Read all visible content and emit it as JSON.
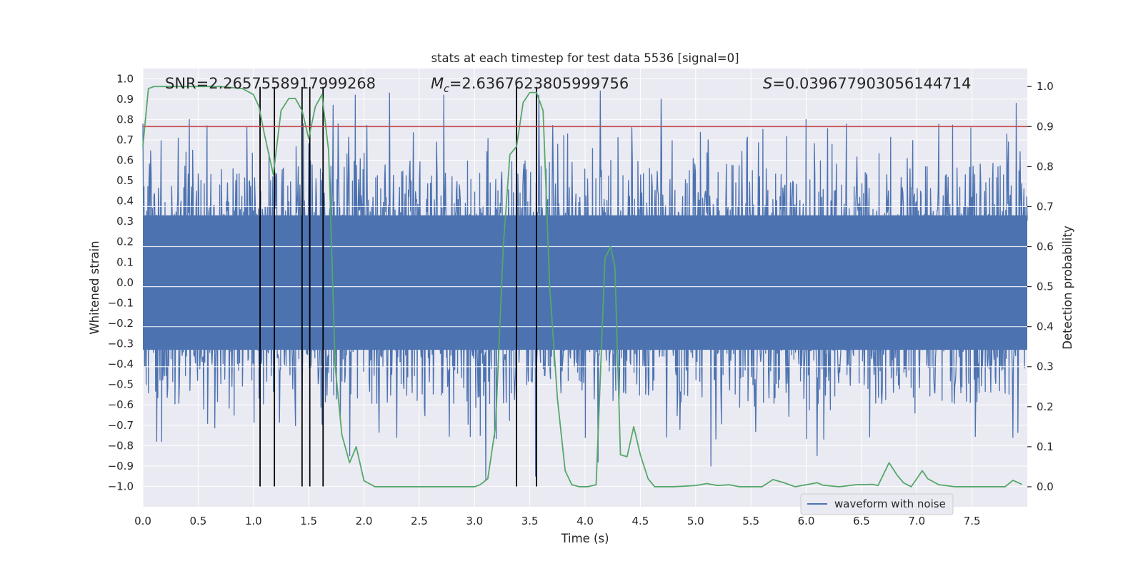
{
  "chart_data": {
    "type": "line",
    "title": "stats at each timestep for test data 5536 [signal=0]",
    "xlabel": "Time (s)",
    "ylabel_left": "Whitened strain",
    "ylabel_right": "Detection probability",
    "xlim": [
      0.0,
      8.0
    ],
    "ylim_left": [
      -1.1,
      1.05
    ],
    "ylim_right": [
      -0.05,
      1.045
    ],
    "x_ticks": [
      0.0,
      0.5,
      1.0,
      1.5,
      2.0,
      2.5,
      3.0,
      3.5,
      4.0,
      4.5,
      5.0,
      5.5,
      6.0,
      6.5,
      7.0,
      7.5
    ],
    "x_tick_labels": [
      "0.0",
      "0.5",
      "1.0",
      "1.5",
      "2.0",
      "2.5",
      "3.0",
      "3.5",
      "4.0",
      "4.5",
      "5.0",
      "5.5",
      "6.0",
      "6.5",
      "7.0",
      "7.5"
    ],
    "y_left_ticks": [
      -1.0,
      -0.9,
      -0.8,
      -0.7,
      -0.6,
      -0.5,
      -0.4,
      -0.3,
      -0.2,
      -0.1,
      0.0,
      0.1,
      0.2,
      0.3,
      0.4,
      0.5,
      0.6,
      0.7,
      0.8,
      0.9,
      1.0
    ],
    "y_left_tick_labels": [
      "−1.0",
      "−0.9",
      "−0.8",
      "−0.7",
      "−0.6",
      "−0.5",
      "−0.4",
      "−0.3",
      "−0.2",
      "−0.1",
      "0.0",
      "0.1",
      "0.2",
      "0.3",
      "0.4",
      "0.5",
      "0.6",
      "0.7",
      "0.8",
      "0.9",
      "1.0"
    ],
    "y_right_ticks": [
      0.0,
      0.1,
      0.2,
      0.3,
      0.4,
      0.5,
      0.6,
      0.7,
      0.8,
      0.9,
      1.0
    ],
    "y_right_tick_labels": [
      "0.0",
      "0.1",
      "0.2",
      "0.3",
      "0.4",
      "0.5",
      "0.6",
      "0.7",
      "0.8",
      "0.9",
      "1.0"
    ],
    "annotations": {
      "snr": "SNR=2.2657558917999268",
      "mc_symbol": "M",
      "mc_subscript": "c",
      "mc_value": "=2.6367623805999756",
      "s_symbol": "S",
      "s_value": "=0.039677903056144714"
    },
    "legend": {
      "label": "waveform with noise",
      "placement": "lower-right"
    },
    "waveform": {
      "name": "waveform with noise",
      "color": "#4c72b0",
      "description_range_y": [
        -1.0,
        0.95
      ],
      "notable_peaks": [
        {
          "x": 0.0,
          "y": 0.78
        },
        {
          "x": 0.42,
          "y": 0.8
        },
        {
          "x": 1.72,
          "y": 0.87
        },
        {
          "x": 1.92,
          "y": 0.92
        },
        {
          "x": 2.23,
          "y": 0.93
        },
        {
          "x": 2.72,
          "y": 0.92
        },
        {
          "x": 3.58,
          "y": 0.92
        },
        {
          "x": 4.14,
          "y": 0.94
        },
        {
          "x": 4.69,
          "y": 0.9
        },
        {
          "x": 6.0,
          "y": 0.8
        },
        {
          "x": 7.9,
          "y": 0.88
        },
        {
          "x": 0.17,
          "y": -0.78
        },
        {
          "x": 1.87,
          "y": -0.85
        },
        {
          "x": 3.1,
          "y": -0.97
        },
        {
          "x": 3.55,
          "y": -0.95
        },
        {
          "x": 4.12,
          "y": -0.88
        },
        {
          "x": 5.14,
          "y": -0.9
        },
        {
          "x": 6.1,
          "y": -0.85
        },
        {
          "x": 7.87,
          "y": -0.76
        }
      ]
    },
    "detection_probability": {
      "color": "#55a868",
      "x": [
        0.0,
        0.05,
        0.1,
        0.2,
        0.3,
        0.5,
        0.7,
        0.9,
        1.0,
        1.05,
        1.1,
        1.18,
        1.25,
        1.32,
        1.38,
        1.44,
        1.5,
        1.56,
        1.62,
        1.68,
        1.74,
        1.8,
        1.87,
        1.93,
        2.0,
        2.1,
        2.2,
        2.3,
        2.5,
        2.7,
        2.9,
        3.0,
        3.05,
        3.12,
        3.19,
        3.26,
        3.32,
        3.38,
        3.44,
        3.5,
        3.56,
        3.62,
        3.68,
        3.75,
        3.82,
        3.88,
        3.95,
        4.02,
        4.1,
        4.18,
        4.23,
        4.27,
        4.32,
        4.38,
        4.44,
        4.5,
        4.57,
        4.63,
        4.7,
        4.8,
        5.0,
        5.1,
        5.2,
        5.3,
        5.4,
        5.5,
        5.6,
        5.7,
        5.8,
        5.9,
        6.0,
        6.1,
        6.15,
        6.3,
        6.45,
        6.6,
        6.65,
        6.75,
        6.82,
        6.88,
        6.95,
        7.0,
        7.05,
        7.1,
        7.2,
        7.35,
        7.5,
        7.7,
        7.8,
        7.87,
        7.95
      ],
      "y": [
        0.85,
        0.995,
        1.0,
        1.0,
        1.0,
        1.0,
        1.0,
        0.995,
        0.98,
        0.95,
        0.88,
        0.78,
        0.94,
        0.97,
        0.97,
        0.94,
        0.87,
        0.95,
        0.98,
        0.84,
        0.3,
        0.13,
        0.06,
        0.1,
        0.015,
        0.0,
        0.0,
        0.0,
        0.0,
        0.0,
        0.0,
        0.0,
        0.005,
        0.02,
        0.15,
        0.6,
        0.83,
        0.85,
        0.96,
        0.985,
        0.985,
        0.94,
        0.5,
        0.22,
        0.04,
        0.005,
        0.0,
        0.0,
        0.005,
        0.57,
        0.6,
        0.55,
        0.08,
        0.075,
        0.15,
        0.08,
        0.02,
        0.0,
        0.0,
        0.0,
        0.003,
        0.008,
        0.003,
        0.005,
        0.0,
        0.0,
        0.0,
        0.018,
        0.01,
        0.0,
        0.005,
        0.01,
        0.004,
        0.0,
        0.005,
        0.006,
        0.003,
        0.06,
        0.03,
        0.01,
        0.0,
        0.02,
        0.04,
        0.02,
        0.005,
        0.0,
        0.0,
        0.0,
        0.0,
        0.016,
        0.006
      ]
    },
    "threshold": {
      "color": "#c44e52",
      "y_prob": 0.9
    },
    "vertical_markers": [
      1.06,
      1.19,
      1.44,
      1.51,
      1.63,
      3.38,
      3.56
    ]
  }
}
